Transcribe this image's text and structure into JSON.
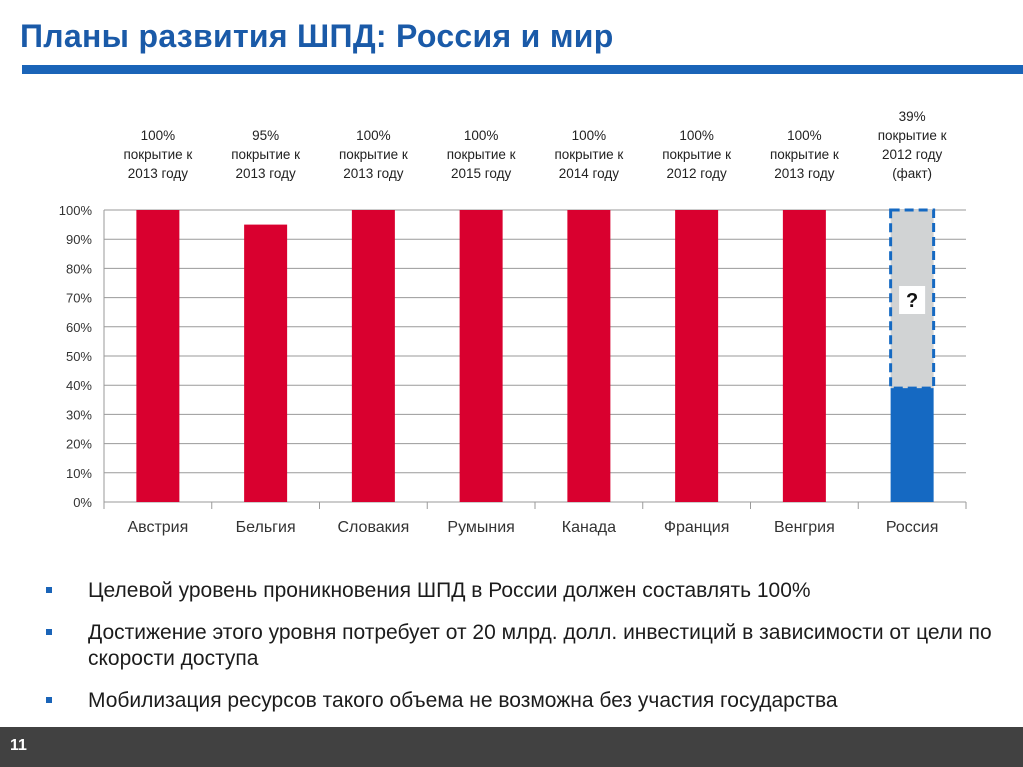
{
  "slide": {
    "title": "Планы развития ШПД: Россия и мир",
    "page_number": "11"
  },
  "colors": {
    "accent": "#1a64b8",
    "bar_red": "#d9002f",
    "bar_blue": "#1569c2",
    "question_fill": "#d1d3d4"
  },
  "chart_data": {
    "type": "bar",
    "categories": [
      "Австрия",
      "Бельгия",
      "Словакия",
      "Румыния",
      "Канада",
      "Франция",
      "Венгрия",
      "Россия"
    ],
    "values": [
      100,
      95,
      100,
      100,
      100,
      100,
      100,
      39
    ],
    "target_placeholder": {
      "category": "Россия",
      "from": 39,
      "to": 100,
      "label": "?"
    },
    "annotations": [
      "100%\nпокрытие к\n2013 году",
      "95%\nпокрытие к\n2013 году",
      "100%\nпокрытие к\n2013 году",
      "100%\nпокрытие к\n2015 году",
      "100%\nпокрытие к\n2014 году",
      "100%\nпокрытие к\n2012 году",
      "100%\nпокрытие к\n2013 году",
      "39%\nпокрытие к\n2012 году\n(факт)"
    ],
    "yticks": [
      "0%",
      "10%",
      "20%",
      "30%",
      "40%",
      "50%",
      "60%",
      "70%",
      "80%",
      "90%",
      "100%"
    ],
    "ylim": [
      0,
      100
    ],
    "grid": true,
    "legend": "none"
  },
  "bullets": [
    "Целевой уровень проникновения ШПД в России должен составлять 100%",
    "Достижение этого уровня потребует  от 20 млрд. долл. инвестиций в зависимости от цели по скорости доступа",
    "Мобилизация ресурсов такого объема не возможна без участия государства"
  ]
}
